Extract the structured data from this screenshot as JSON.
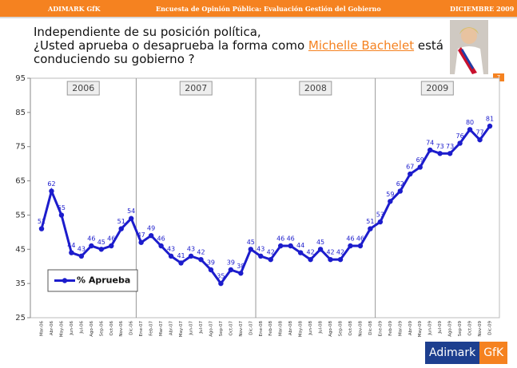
{
  "header": {
    "left": "ADIMARK GfK",
    "center": "Encuesta de Opinión Pública: Evaluación Gestión del Gobierno",
    "right": "DICIEMBRE 2009"
  },
  "question": {
    "line1": "Independiente de su posición política,",
    "line2_start": "¿Usted aprueba o desaprueba la forma como",
    "name": "Michelle Bachelet",
    "line2_end": "está",
    "line3": "conduciendo su gobierno ?"
  },
  "page_number": "7",
  "logo": {
    "left": "Adimark",
    "right": "GfK"
  },
  "chart_data": {
    "type": "line",
    "categories": [
      "Mar-06",
      "Abr-06",
      "May-06",
      "Jun-06",
      "Jul-06",
      "Ago-06",
      "Sep-06",
      "Oct-06",
      "Nov-06",
      "Dic-06",
      "Ene-07",
      "Feb-07",
      "Mar-07",
      "Abr-07",
      "May-07",
      "Jun-07",
      "Jul-07",
      "Ago-07",
      "Sep-07",
      "Oct-07",
      "Nov-07",
      "Dic-07",
      "Ene-08",
      "Feb-08",
      "Mar-08",
      "Abr-08",
      "May-08",
      "Jun-08",
      "Jul-08",
      "Ago-08",
      "Sep-08",
      "Oct-08",
      "Nov-08",
      "Dic-08",
      "Ene-09",
      "Feb-09",
      "Mar-09",
      "Abr-09",
      "May-09",
      "Jun-09",
      "Jul-09",
      "Ago-09",
      "Sep-09",
      "Oct-09",
      "Nov-09",
      "Dic-09"
    ],
    "series": [
      {
        "name": "% Aprueba",
        "color": "#1c1ccc",
        "values": [
          51,
          62,
          55,
          44,
          43,
          46,
          45,
          46,
          51,
          54,
          47,
          49,
          46,
          43,
          41,
          43,
          42,
          39,
          35,
          39,
          38,
          45,
          43,
          42,
          46,
          46,
          44,
          42,
          45,
          42,
          42,
          46,
          46,
          51,
          53,
          59,
          62,
          67,
          69,
          74,
          73,
          73,
          76,
          80,
          77,
          81
        ]
      }
    ],
    "year_labels": [
      "2006",
      "2007",
      "2008",
      "2009"
    ],
    "ylim": [
      25,
      95
    ],
    "yticks": [
      25,
      35,
      45,
      55,
      65,
      75,
      85,
      95
    ],
    "grid": false,
    "legend": "lower left"
  }
}
